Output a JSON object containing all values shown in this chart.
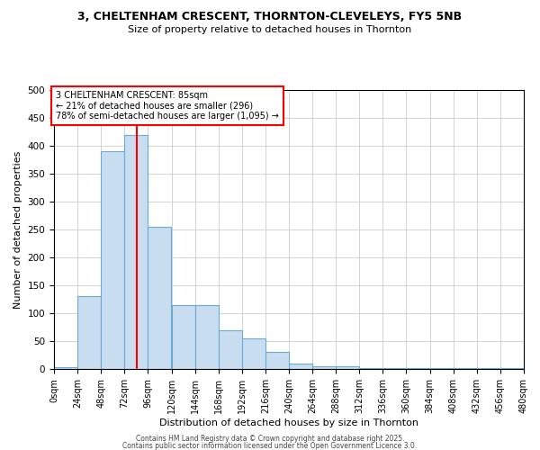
{
  "title1": "3, CHELTENHAM CRESCENT, THORNTON-CLEVELEYS, FY5 5NB",
  "title2": "Size of property relative to detached houses in Thornton",
  "xlabel": "Distribution of detached houses by size in Thornton",
  "ylabel": "Number of detached properties",
  "bar_color": "#c9ddf0",
  "bar_edge_color": "#6aaad4",
  "bin_edges": [
    0,
    24,
    48,
    72,
    96,
    120,
    144,
    168,
    192,
    216,
    240,
    264,
    288,
    312,
    336,
    360,
    384,
    408,
    432,
    456,
    480
  ],
  "bar_heights": [
    3,
    130,
    390,
    420,
    255,
    115,
    115,
    70,
    55,
    30,
    10,
    5,
    5,
    2,
    1,
    1,
    1,
    1,
    1,
    1
  ],
  "red_line_x": 85,
  "ylim": [
    0,
    500
  ],
  "yticks": [
    0,
    50,
    100,
    150,
    200,
    250,
    300,
    350,
    400,
    450,
    500
  ],
  "xtick_labels": [
    "0sqm",
    "24sqm",
    "48sqm",
    "72sqm",
    "96sqm",
    "120sqm",
    "144sqm",
    "168sqm",
    "192sqm",
    "216sqm",
    "240sqm",
    "264sqm",
    "288sqm",
    "312sqm",
    "336sqm",
    "360sqm",
    "384sqm",
    "408sqm",
    "432sqm",
    "456sqm",
    "480sqm"
  ],
  "annotation_title": "3 CHELTENHAM CRESCENT: 85sqm",
  "annotation_line1": "← 21% of detached houses are smaller (296)",
  "annotation_line2": "78% of semi-detached houses are larger (1,095) →",
  "grid_color": "#cccccc",
  "footer_line1": "Contains HM Land Registry data © Crown copyright and database right 2025.",
  "footer_line2": "Contains public sector information licensed under the Open Government Licence 3.0."
}
